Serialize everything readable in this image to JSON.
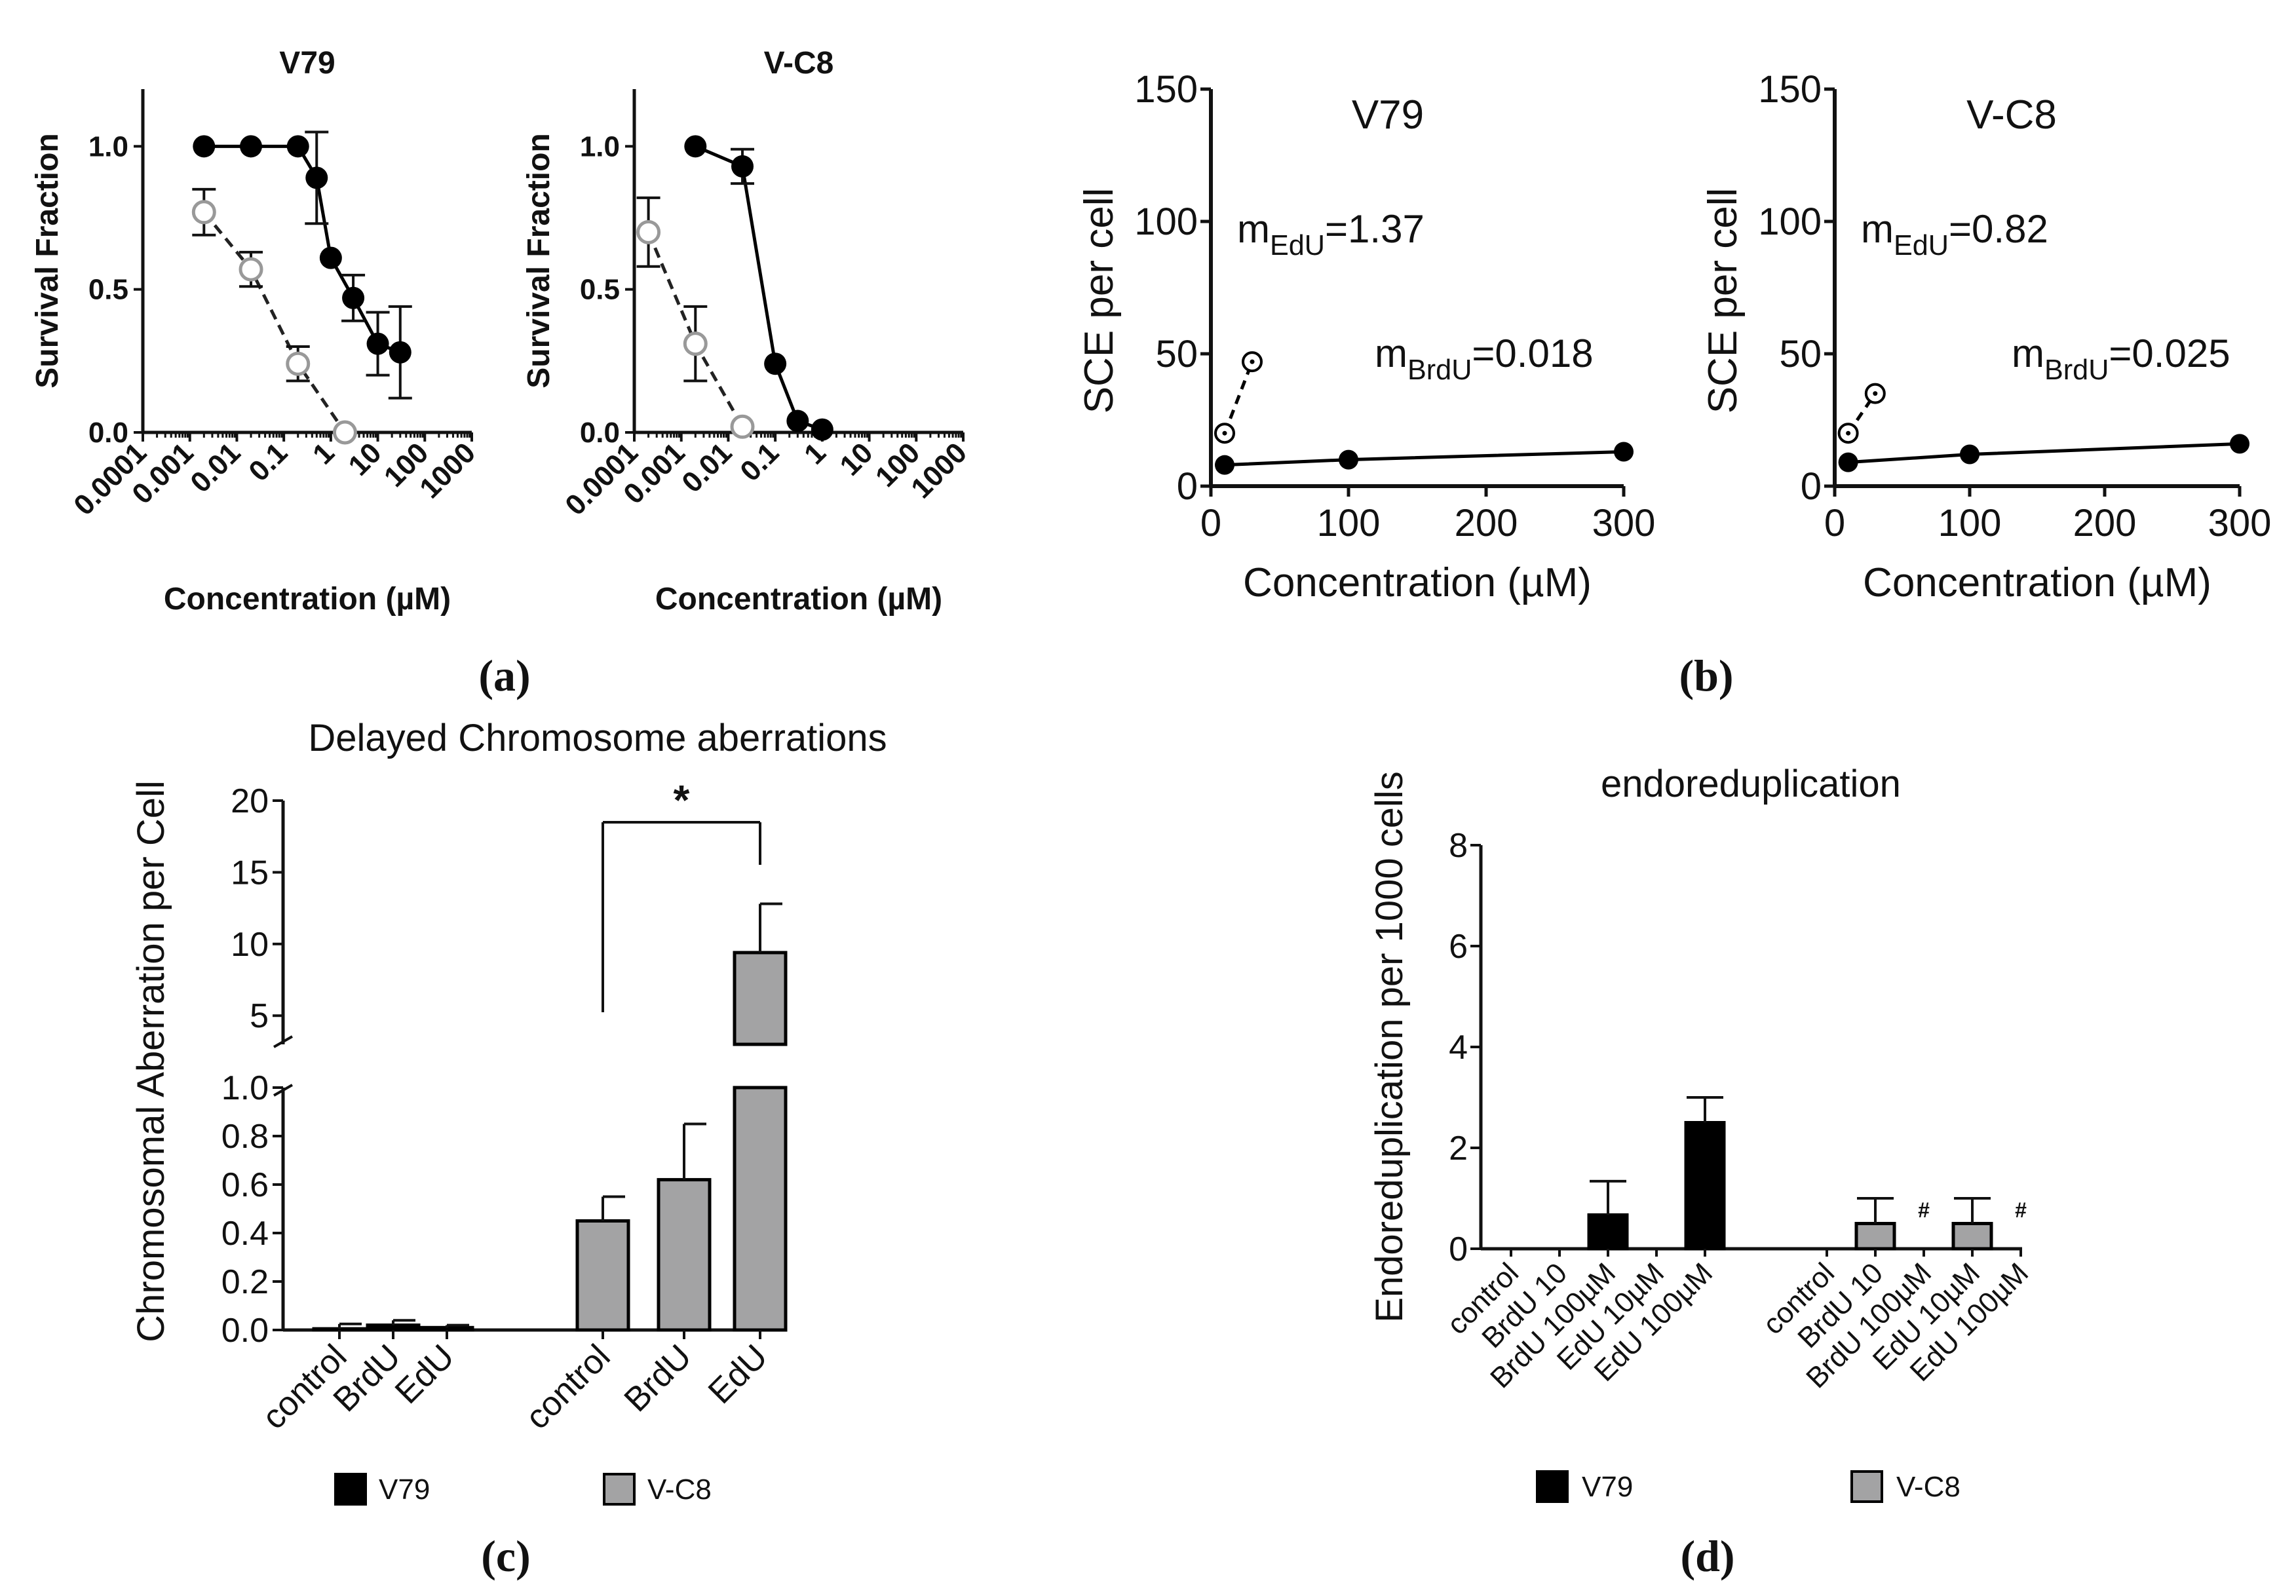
{
  "panel_labels": {
    "a": "(a)",
    "b": "(b)",
    "c": "(c)",
    "d": "(d)"
  },
  "colors": {
    "v79": "#000000",
    "vc8": "#a3a3a4",
    "open_marker": "#999999",
    "ink": "#111111"
  },
  "chart_data": [
    {
      "id": "a1",
      "type": "line",
      "panel": "a",
      "title": "V79",
      "xlabel": "Concentration (µM)",
      "ylabel": "Survival Fraction",
      "xscale": "log",
      "xlim": [
        0.0001,
        1000
      ],
      "ylim": [
        0,
        1.2
      ],
      "xticks": [
        0.0001,
        0.001,
        0.01,
        0.1,
        1,
        10,
        100,
        1000
      ],
      "xtick_labels": [
        "0.0001",
        "0.001",
        "0.01",
        "0.1",
        "1",
        "10",
        "100",
        "1000"
      ],
      "yticks": [
        0,
        0.5,
        1
      ],
      "ytick_labels": [
        "0.0",
        "0.5",
        "1.0"
      ],
      "series": [
        {
          "name": "filled",
          "style": "solid",
          "marker": "filled",
          "x": [
            0.002,
            0.02,
            0.2,
            0.5,
            1,
            3,
            10,
            30
          ],
          "y": [
            1.0,
            1.0,
            1.0,
            0.89,
            0.61,
            0.47,
            0.31,
            0.28
          ],
          "err": [
            0,
            0,
            0,
            0.16,
            0,
            0.08,
            0.11,
            0.16
          ]
        },
        {
          "name": "open",
          "style": "dashed",
          "marker": "open",
          "x": [
            0.002,
            0.02,
            0.2,
            2
          ],
          "y": [
            0.77,
            0.57,
            0.24,
            0.0
          ],
          "err": [
            0.08,
            0.06,
            0.06,
            0
          ]
        }
      ]
    },
    {
      "id": "a2",
      "type": "line",
      "panel": "a",
      "title": "V-C8",
      "xlabel": "Concentration (µM)",
      "ylabel": "Survival Fraction",
      "xscale": "log",
      "xlim": [
        0.0001,
        1000
      ],
      "ylim": [
        0,
        1.2
      ],
      "xticks": [
        0.0001,
        0.001,
        0.01,
        0.1,
        1,
        10,
        100,
        1000
      ],
      "xtick_labels": [
        "0.0001",
        "0.001",
        "0.01",
        "0.1",
        "1",
        "10",
        "100",
        "1000"
      ],
      "yticks": [
        0,
        0.5,
        1
      ],
      "ytick_labels": [
        "0.0",
        "0.5",
        "1.0"
      ],
      "series": [
        {
          "name": "filled",
          "style": "solid",
          "marker": "filled",
          "x": [
            0.002,
            0.02,
            0.1,
            0.3,
            1
          ],
          "y": [
            1.0,
            0.93,
            0.24,
            0.04,
            0.01
          ],
          "err": [
            0,
            0.06,
            0,
            0,
            0
          ]
        },
        {
          "name": "open",
          "style": "dashed",
          "marker": "open",
          "x": [
            0.0002,
            0.002,
            0.02
          ],
          "y": [
            0.7,
            0.31,
            0.02
          ],
          "err": [
            0.12,
            0.13,
            0
          ]
        }
      ]
    },
    {
      "id": "b1",
      "type": "line",
      "panel": "b",
      "title": "V79",
      "xlabel": "Concentration (µM)",
      "ylabel": "SCE per cell",
      "xlim": [
        0,
        300
      ],
      "ylim": [
        0,
        150
      ],
      "xticks": [
        0,
        100,
        200,
        300
      ],
      "xtick_labels": [
        "0",
        "100",
        "200",
        "300"
      ],
      "yticks": [
        0,
        50,
        100,
        150
      ],
      "ytick_labels": [
        "0",
        "50",
        "100",
        "150"
      ],
      "annotations": [
        {
          "base": "m",
          "sub": "EdU",
          "rest": "=1.37"
        },
        {
          "base": "m",
          "sub": "BrdU",
          "rest": "=0.018"
        }
      ],
      "series": [
        {
          "name": "BrdU",
          "style": "solid",
          "marker": "filled",
          "x": [
            10,
            100,
            300
          ],
          "y": [
            8,
            10,
            13
          ]
        },
        {
          "name": "EdU",
          "style": "dashed",
          "marker": "open-dot",
          "x": [
            10,
            30
          ],
          "y": [
            20,
            47
          ]
        }
      ]
    },
    {
      "id": "b2",
      "type": "line",
      "panel": "b",
      "title": "V-C8",
      "xlabel": "Concentration (µM)",
      "ylabel": "SCE per cell",
      "xlim": [
        0,
        300
      ],
      "ylim": [
        0,
        150
      ],
      "xticks": [
        0,
        100,
        200,
        300
      ],
      "xtick_labels": [
        "0",
        "100",
        "200",
        "300"
      ],
      "yticks": [
        0,
        50,
        100,
        150
      ],
      "ytick_labels": [
        "0",
        "50",
        "100",
        "150"
      ],
      "annotations": [
        {
          "base": "m",
          "sub": "EdU",
          "rest": "=0.82"
        },
        {
          "base": "m",
          "sub": "BrdU",
          "rest": "=0.025"
        }
      ],
      "series": [
        {
          "name": "BrdU",
          "style": "solid",
          "marker": "filled",
          "x": [
            10,
            100,
            300
          ],
          "y": [
            9,
            12,
            16
          ]
        },
        {
          "name": "EdU",
          "style": "dashed",
          "marker": "open-dot",
          "x": [
            10,
            30
          ],
          "y": [
            20,
            35
          ]
        }
      ]
    },
    {
      "id": "c",
      "type": "bar",
      "panel": "c",
      "title": "Delayed Chromosome aberrations",
      "ylabel": "Chromosomal Aberration per Cell",
      "broken_axis": {
        "lower": [
          0,
          1.0
        ],
        "upper": [
          3,
          20
        ]
      },
      "yticks_lower": [
        0,
        0.2,
        0.4,
        0.6,
        0.8,
        1.0
      ],
      "ytick_labels_lower": [
        "0.0",
        "0.2",
        "0.4",
        "0.6",
        "0.8",
        "1.0"
      ],
      "yticks_upper": [
        5,
        10,
        15,
        20
      ],
      "ytick_labels_upper": [
        "5",
        "10",
        "15",
        "20"
      ],
      "categories": [
        "control",
        "BrdU",
        "EdU",
        "control",
        "BrdU",
        "EdU"
      ],
      "groups": [
        "V79",
        "V79",
        "V79",
        "V-C8",
        "V-C8",
        "V-C8"
      ],
      "values": [
        0.005,
        0.02,
        0.01,
        0.45,
        0.62,
        9.4
      ],
      "errors": [
        0.02,
        0.02,
        0.01,
        0.1,
        0.23,
        3.4
      ],
      "significance": {
        "from": 3,
        "to": 5,
        "label": "*"
      },
      "legend": [
        "V79",
        "V-C8"
      ]
    },
    {
      "id": "d",
      "type": "bar",
      "panel": "d",
      "title": "endoreduplication",
      "ylabel": "Endoreduplication per 1000 cells",
      "ylim": [
        0,
        8
      ],
      "yticks": [
        0,
        2,
        4,
        6,
        8
      ],
      "ytick_labels": [
        "0",
        "2",
        "4",
        "6",
        "8"
      ],
      "categories": [
        "control",
        "BrdU 10",
        "BrdU 100µM",
        "EdU 10µM",
        "EdU 100µM",
        "control",
        "BrdU 10",
        "BrdU 100µM",
        "EdU 10µM",
        "EdU 100µM"
      ],
      "groups": [
        "V79",
        "V79",
        "V79",
        "V79",
        "V79",
        "V-C8",
        "V-C8",
        "V-C8",
        "V-C8",
        "V-C8"
      ],
      "values": [
        0,
        0,
        0.67,
        0,
        2.5,
        0,
        0.5,
        0,
        0.5,
        0
      ],
      "errors": [
        0,
        0,
        0.67,
        0,
        0.5,
        0,
        0.5,
        0,
        0.5,
        0
      ],
      "marks": [
        "",
        "",
        "",
        "",
        "",
        "",
        "",
        "#",
        "",
        "#"
      ],
      "legend": [
        "V79",
        "V-C8"
      ]
    }
  ]
}
